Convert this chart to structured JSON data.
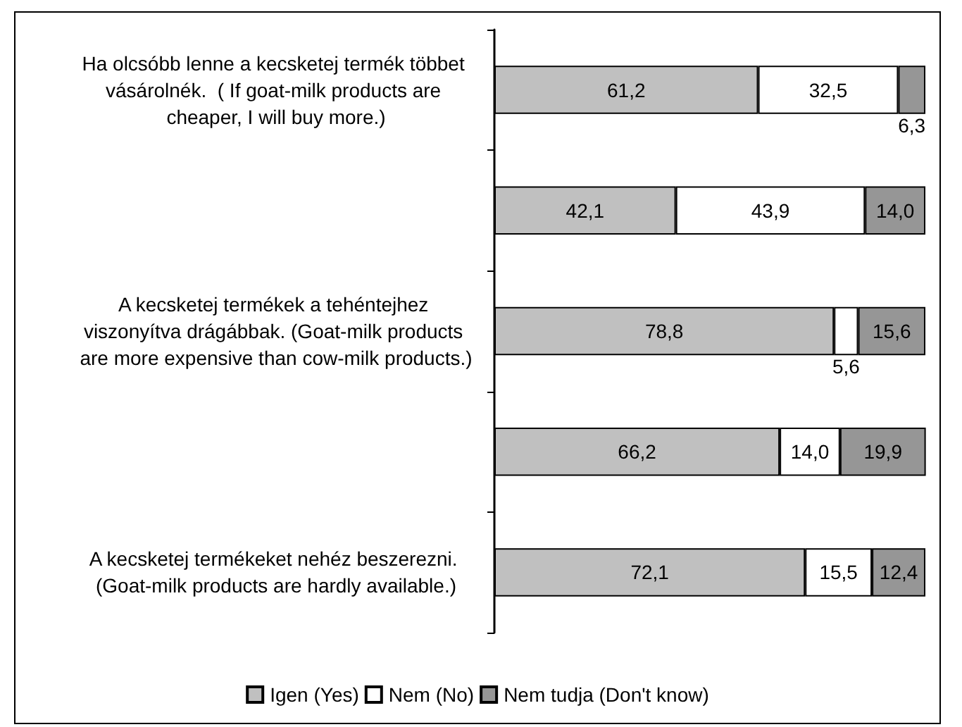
{
  "chart_data": {
    "type": "bar",
    "orientation": "horizontal",
    "stacked": true,
    "legend": "bottom",
    "tick_labels": "y",
    "xlim": [
      0,
      100
    ],
    "categories": [
      "Ha olcsóbb lenne a kecsketej termék többet vásárolnék.  ( If goat-milk products are cheaper, I will buy more.)",
      null,
      "A kecsketej termékek a tehéntejhez viszonyítva drágábbak. (Goat-milk products are more expensive than cow-milk products.)",
      null,
      "A kecsketej termékeket nehéz beszerezni. (Goat-milk products are hardly available.)"
    ],
    "series": [
      {
        "name": "Igen (Yes)",
        "color": "#c0c0c0",
        "values": [
          61.2,
          42.1,
          78.8,
          66.2,
          72.1
        ],
        "value_labels": [
          "61,2",
          "42,1",
          "78,8",
          "66,2",
          "72,1"
        ]
      },
      {
        "name": "Nem (No)",
        "color": "#ffffff",
        "values": [
          32.5,
          43.9,
          5.6,
          14.0,
          15.5
        ],
        "value_labels": [
          "32,5",
          "43,9",
          "5,6",
          "14,0",
          "15,5"
        ]
      },
      {
        "name": "Nem tudja (Don't know)",
        "color": "#969696",
        "values": [
          6.3,
          14.0,
          15.6,
          19.9,
          12.4
        ],
        "value_labels": [
          "6,3",
          "14,0",
          "15,6",
          "19,9",
          "12,4"
        ]
      }
    ]
  }
}
